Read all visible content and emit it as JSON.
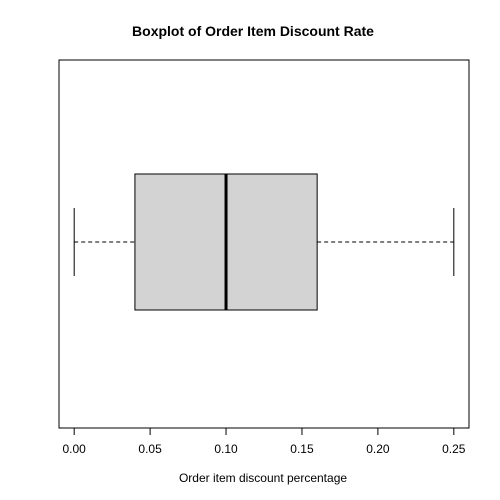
{
  "chart_data": {
    "type": "boxplot",
    "orientation": "horizontal",
    "title": "Boxplot of Order Item Discount Rate",
    "xlabel": "Order item discount percentage",
    "ylabel": "",
    "xlim": [
      -0.01,
      0.26
    ],
    "ticks": [
      {
        "value": 0.0,
        "label": "0.00"
      },
      {
        "value": 0.05,
        "label": "0.05"
      },
      {
        "value": 0.1,
        "label": "0.10"
      },
      {
        "value": 0.15,
        "label": "0.15"
      },
      {
        "value": 0.2,
        "label": "0.20"
      },
      {
        "value": 0.25,
        "label": "0.25"
      }
    ],
    "box": {
      "whisker_low": 0.0,
      "q1": 0.04,
      "median": 0.1,
      "q3": 0.16,
      "whisker_high": 0.25
    },
    "colors": {
      "box_fill": "#d3d3d3",
      "stroke": "#000000"
    }
  }
}
